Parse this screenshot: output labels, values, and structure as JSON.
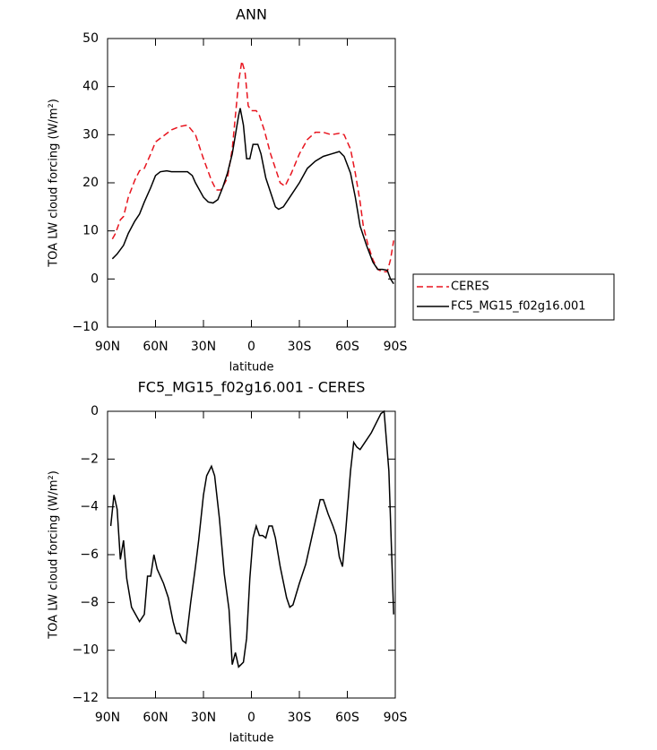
{
  "chart_data": [
    {
      "type": "line",
      "title": "ANN",
      "xlabel": "latitude",
      "ylabel": "TOA LW cloud forcing (W/m²)",
      "xlim": [
        90,
        -90
      ],
      "ylim": [
        -10,
        50
      ],
      "xticks": [
        {
          "value": 90,
          "label": "90N"
        },
        {
          "value": 60,
          "label": "60N"
        },
        {
          "value": 30,
          "label": "30N"
        },
        0,
        {
          "value": -30,
          "label": "30S"
        },
        {
          "value": -60,
          "label": "60S"
        },
        {
          "value": -90,
          "label": "90S"
        }
      ],
      "yticks": [
        {
          "value": -10,
          "label": "−10"
        },
        0,
        10,
        20,
        30,
        40,
        50
      ],
      "legend": "right",
      "series": [
        {
          "name": "CERES",
          "color": "#e8141e",
          "dash": true,
          "x": [
            87,
            85,
            82,
            80,
            77,
            73,
            70,
            67,
            63,
            60,
            56,
            50,
            45,
            40,
            35,
            30,
            25,
            22,
            19,
            15,
            12,
            10,
            8,
            6,
            4,
            2,
            0,
            -3,
            -5,
            -8,
            -12,
            -15,
            -18,
            -21,
            -25,
            -30,
            -35,
            -40,
            -45,
            -50,
            -55,
            -58,
            -62,
            -65,
            -68,
            -70,
            -73,
            -76,
            -79,
            -82,
            -85,
            -87,
            -89
          ],
          "values": [
            8.3,
            9.5,
            12.3,
            13,
            17,
            20.5,
            22.5,
            23,
            26,
            28.5,
            29.5,
            31,
            31.7,
            32,
            30,
            25,
            20.5,
            18.5,
            18.5,
            21,
            27,
            34,
            41,
            45.3,
            43,
            36,
            35,
            35,
            34,
            31,
            26,
            23,
            20,
            19.3,
            22,
            26,
            29,
            30.5,
            30.5,
            30,
            30.3,
            30,
            27,
            22,
            16,
            11,
            7,
            4,
            2,
            1.5,
            1.5,
            4,
            8
          ]
        },
        {
          "name": "FC5_MG15_f02g16.001",
          "color": "#000000",
          "dash": false,
          "x": [
            87,
            84,
            80,
            77,
            73,
            70,
            67,
            63,
            60,
            57,
            53,
            50,
            45,
            40,
            37,
            35,
            30,
            27,
            24,
            21,
            18,
            15,
            12,
            10,
            8,
            7,
            5,
            3,
            1,
            -1,
            -4,
            -6,
            -9,
            -13,
            -15,
            -17,
            -20,
            -25,
            -30,
            -35,
            -40,
            -45,
            -50,
            -55,
            -58,
            -62,
            -65,
            -68,
            -72,
            -76,
            -79,
            -82,
            -85,
            -87,
            -89
          ],
          "values": [
            4.2,
            5.2,
            7,
            9.5,
            12,
            13.5,
            16,
            19,
            21.5,
            22.3,
            22.5,
            22.3,
            22.3,
            22.3,
            21.5,
            20,
            17,
            16,
            15.8,
            16.5,
            19,
            22,
            26,
            30,
            34,
            35.5,
            32,
            25,
            25,
            28,
            28,
            26,
            21,
            17,
            15,
            14.5,
            15,
            17.5,
            20,
            23,
            24.5,
            25.5,
            26,
            26.5,
            25.5,
            22,
            17,
            11,
            7,
            3.5,
            2,
            2,
            1.8,
            0,
            -1
          ]
        }
      ]
    },
    {
      "type": "line",
      "title": "FC5_MG15_f02g16.001 - CERES",
      "xlabel": "latitude",
      "ylabel": "TOA LW cloud forcing (W/m²)",
      "xlim": [
        90,
        -90
      ],
      "ylim": [
        -12,
        0
      ],
      "xticks": [
        {
          "value": 90,
          "label": "90N"
        },
        {
          "value": 60,
          "label": "60N"
        },
        {
          "value": 30,
          "label": "30N"
        },
        0,
        {
          "value": -30,
          "label": "30S"
        },
        {
          "value": -60,
          "label": "60S"
        },
        {
          "value": -90,
          "label": "90S"
        }
      ],
      "yticks": [
        {
          "value": -12,
          "label": "−12"
        },
        {
          "value": -10,
          "label": "−10"
        },
        {
          "value": -8,
          "label": "−8"
        },
        {
          "value": -6,
          "label": "−6"
        },
        {
          "value": -4,
          "label": "−4"
        },
        {
          "value": -2,
          "label": "−2"
        },
        0
      ],
      "series": [
        {
          "color": "#000000",
          "dash": false,
          "x": [
            88,
            86,
            84,
            82,
            80,
            78,
            75,
            70,
            67,
            65,
            63,
            61,
            59,
            55,
            52,
            49,
            47,
            45,
            43,
            41,
            38,
            35,
            33,
            30,
            28,
            25,
            23,
            20,
            17,
            14,
            12,
            10,
            8,
            5,
            3,
            1,
            -1,
            -3,
            -5,
            -7,
            -9,
            -11,
            -13,
            -15,
            -18,
            -22,
            -24,
            -26,
            -30,
            -34,
            -38,
            -41,
            -43,
            -45,
            -48,
            -51,
            -53,
            -55,
            -57,
            -59,
            -62,
            -64,
            -66,
            -68,
            -71,
            -75,
            -78,
            -81,
            -83,
            -86,
            -89
          ],
          "values": [
            -4.8,
            -3.5,
            -4.1,
            -6.2,
            -5.4,
            -7,
            -8.2,
            -8.8,
            -8.5,
            -6.9,
            -6.9,
            -6,
            -6.6,
            -7.2,
            -7.8,
            -8.8,
            -9.3,
            -9.3,
            -9.6,
            -9.7,
            -8,
            -6.5,
            -5.4,
            -3.5,
            -2.7,
            -2.3,
            -2.7,
            -4.5,
            -6.8,
            -8.3,
            -10.6,
            -10.1,
            -10.7,
            -10.5,
            -9.5,
            -7,
            -5.3,
            -4.8,
            -5.2,
            -5.2,
            -5.3,
            -4.8,
            -4.8,
            -5.3,
            -6.5,
            -7.8,
            -8.2,
            -8.1,
            -7.2,
            -6.4,
            -5.2,
            -4.3,
            -3.7,
            -3.7,
            -4.3,
            -4.8,
            -5.2,
            -6.1,
            -6.5,
            -5,
            -2.5,
            -1.3,
            -1.5,
            -1.6,
            -1.3,
            -0.9,
            -0.5,
            -0.1,
            0,
            -2.5,
            -8.5
          ]
        }
      ]
    }
  ]
}
